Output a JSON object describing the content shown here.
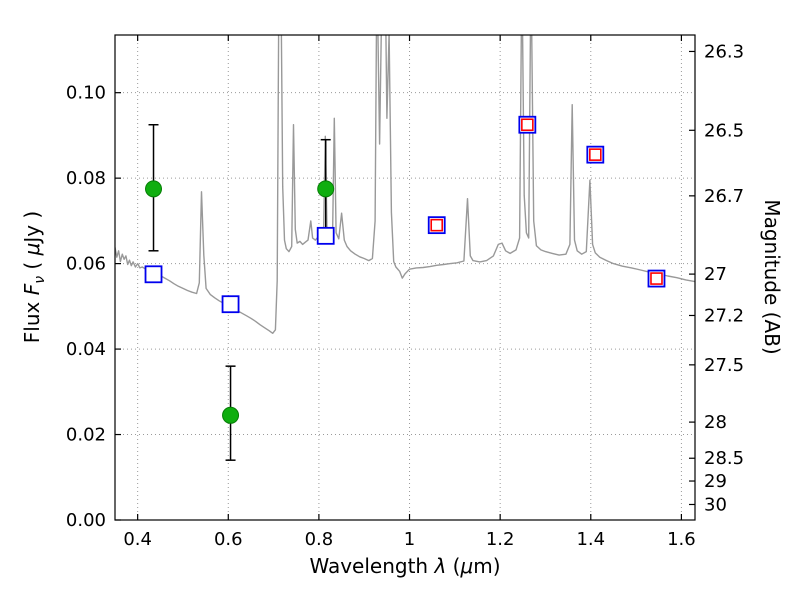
{
  "figure": {
    "xlabel": {
      "p1": "Wavelength  ",
      "lam": "λ",
      "p2": " (",
      "mu": "μ",
      "p3": "m)"
    },
    "ylabel": {
      "p1": "Flux  ",
      "f": "F",
      "sub": "ν",
      "p2": "  ( ",
      "mu": "μ",
      "p3": "Jy )"
    },
    "y2label": "Magnitude (AB)"
  },
  "chart_data": {
    "type": "line+scatter",
    "title": "",
    "xlabel": "Wavelength λ (μm)",
    "ylabel": "Flux Fν ( μJy )",
    "y2label": "Magnitude (AB)",
    "xlim": [
      0.35,
      1.63
    ],
    "ylim": [
      0.0,
      0.1135
    ],
    "x_ticks": [
      0.4,
      0.6,
      0.8,
      1.0,
      1.2,
      1.4,
      1.6
    ],
    "x_tick_labels": [
      "0.4",
      "0.6",
      "0.8",
      "1",
      "1.2",
      "1.4",
      "1.6"
    ],
    "y_ticks": [
      0.0,
      0.02,
      0.04,
      0.06,
      0.08,
      0.1
    ],
    "y_tick_labels": [
      "0.00",
      "0.02",
      "0.04",
      "0.06",
      "0.08",
      "0.10"
    ],
    "y2_tick_mags": [
      26.3,
      26.5,
      26.7,
      27,
      27.2,
      27.5,
      28,
      28.5,
      29,
      30
    ],
    "y2_tick_labels": [
      "26.3",
      "26.5",
      "26.7",
      "27",
      "27.2",
      "27.5",
      "28",
      "28.5",
      "29",
      "30"
    ],
    "ab_mag_zeropoint": 23.9,
    "grid": {
      "style": "dotted",
      "color": "#9a9a9a"
    },
    "colors": {
      "spectrum": "#999999",
      "observed_fill": "#0fae0f",
      "observed_edge": "#067d06",
      "errorbar": "#000000",
      "model_edge": "#0000ee",
      "model_inner": "#ff0000",
      "frame": "#000000",
      "background": "#ffffff"
    },
    "spectrum": {
      "name": "galaxy-spectrum",
      "color": "#999999",
      "linewidth": 1.4,
      "points": [
        [
          0.35,
          0.0638
        ],
        [
          0.354,
          0.0615
        ],
        [
          0.358,
          0.063
        ],
        [
          0.362,
          0.0605
        ],
        [
          0.366,
          0.0622
        ],
        [
          0.37,
          0.061
        ],
        [
          0.374,
          0.0618
        ],
        [
          0.378,
          0.0598
        ],
        [
          0.382,
          0.0608
        ],
        [
          0.386,
          0.0595
        ],
        [
          0.39,
          0.0604
        ],
        [
          0.395,
          0.0592
        ],
        [
          0.4,
          0.06
        ],
        [
          0.405,
          0.059
        ],
        [
          0.41,
          0.0592
        ],
        [
          0.42,
          0.0586
        ],
        [
          0.43,
          0.0583
        ],
        [
          0.44,
          0.0578
        ],
        [
          0.45,
          0.0572
        ],
        [
          0.46,
          0.0566
        ],
        [
          0.47,
          0.056
        ],
        [
          0.48,
          0.0553
        ],
        [
          0.49,
          0.0547
        ],
        [
          0.5,
          0.0542
        ],
        [
          0.51,
          0.0537
        ],
        [
          0.52,
          0.0533
        ],
        [
          0.53,
          0.053
        ],
        [
          0.536,
          0.0555
        ],
        [
          0.541,
          0.0768
        ],
        [
          0.546,
          0.062
        ],
        [
          0.551,
          0.0542
        ],
        [
          0.56,
          0.0528
        ],
        [
          0.57,
          0.052
        ],
        [
          0.58,
          0.0513
        ],
        [
          0.59,
          0.0507
        ],
        [
          0.6,
          0.0501
        ],
        [
          0.61,
          0.0495
        ],
        [
          0.62,
          0.049
        ],
        [
          0.63,
          0.0484
        ],
        [
          0.64,
          0.0478
        ],
        [
          0.65,
          0.0472
        ],
        [
          0.66,
          0.0465
        ],
        [
          0.67,
          0.0457
        ],
        [
          0.68,
          0.045
        ],
        [
          0.69,
          0.0443
        ],
        [
          0.698,
          0.0437
        ],
        [
          0.704,
          0.0445
        ],
        [
          0.708,
          0.056
        ],
        [
          0.712,
          0.13
        ],
        [
          0.716,
          0.13
        ],
        [
          0.72,
          0.078
        ],
        [
          0.724,
          0.0655
        ],
        [
          0.728,
          0.0635
        ],
        [
          0.734,
          0.0628
        ],
        [
          0.74,
          0.064
        ],
        [
          0.744,
          0.0925
        ],
        [
          0.748,
          0.068
        ],
        [
          0.752,
          0.0648
        ],
        [
          0.758,
          0.0652
        ],
        [
          0.764,
          0.0645
        ],
        [
          0.77,
          0.065
        ],
        [
          0.776,
          0.0655
        ],
        [
          0.782,
          0.07
        ],
        [
          0.786,
          0.066
        ],
        [
          0.792,
          0.0655
        ],
        [
          0.798,
          0.0662
        ],
        [
          0.804,
          0.0655
        ],
        [
          0.81,
          0.065
        ],
        [
          0.814,
          0.0898
        ],
        [
          0.818,
          0.0665
        ],
        [
          0.824,
          0.0652
        ],
        [
          0.83,
          0.0655
        ],
        [
          0.834,
          0.094
        ],
        [
          0.838,
          0.0672
        ],
        [
          0.844,
          0.0658
        ],
        [
          0.85,
          0.0718
        ],
        [
          0.856,
          0.0655
        ],
        [
          0.862,
          0.064
        ],
        [
          0.87,
          0.063
        ],
        [
          0.88,
          0.0622
        ],
        [
          0.89,
          0.0616
        ],
        [
          0.9,
          0.0612
        ],
        [
          0.91,
          0.0607
        ],
        [
          0.918,
          0.0612
        ],
        [
          0.924,
          0.07
        ],
        [
          0.928,
          0.13
        ],
        [
          0.934,
          0.088
        ],
        [
          0.94,
          0.13
        ],
        [
          0.946,
          0.13
        ],
        [
          0.95,
          0.094
        ],
        [
          0.955,
          0.114
        ],
        [
          0.96,
          0.072
        ],
        [
          0.965,
          0.0605
        ],
        [
          0.97,
          0.0592
        ],
        [
          0.978,
          0.0582
        ],
        [
          0.984,
          0.0566
        ],
        [
          0.99,
          0.0576
        ],
        [
          1.0,
          0.0587
        ],
        [
          1.015,
          0.059
        ],
        [
          1.03,
          0.0591
        ],
        [
          1.045,
          0.0593
        ],
        [
          1.06,
          0.0596
        ],
        [
          1.075,
          0.0598
        ],
        [
          1.09,
          0.06
        ],
        [
          1.105,
          0.0602
        ],
        [
          1.12,
          0.0606
        ],
        [
          1.128,
          0.0752
        ],
        [
          1.134,
          0.0618
        ],
        [
          1.14,
          0.0607
        ],
        [
          1.155,
          0.0604
        ],
        [
          1.17,
          0.0607
        ],
        [
          1.185,
          0.0618
        ],
        [
          1.196,
          0.0645
        ],
        [
          1.204,
          0.0648
        ],
        [
          1.212,
          0.063
        ],
        [
          1.222,
          0.0624
        ],
        [
          1.235,
          0.0632
        ],
        [
          1.243,
          0.066
        ],
        [
          1.248,
          0.13
        ],
        [
          1.253,
          0.076
        ],
        [
          1.258,
          0.0672
        ],
        [
          1.263,
          0.066
        ],
        [
          1.268,
          0.13
        ],
        [
          1.274,
          0.07
        ],
        [
          1.28,
          0.0642
        ],
        [
          1.29,
          0.0632
        ],
        [
          1.3,
          0.0628
        ],
        [
          1.315,
          0.0624
        ],
        [
          1.33,
          0.062
        ],
        [
          1.345,
          0.0622
        ],
        [
          1.354,
          0.0645
        ],
        [
          1.359,
          0.0972
        ],
        [
          1.364,
          0.0655
        ],
        [
          1.37,
          0.063
        ],
        [
          1.38,
          0.0622
        ],
        [
          1.39,
          0.0628
        ],
        [
          1.398,
          0.0795
        ],
        [
          1.404,
          0.0645
        ],
        [
          1.41,
          0.0625
        ],
        [
          1.42,
          0.0615
        ],
        [
          1.435,
          0.0607
        ],
        [
          1.45,
          0.06
        ],
        [
          1.47,
          0.0594
        ],
        [
          1.49,
          0.059
        ],
        [
          1.51,
          0.0585
        ],
        [
          1.53,
          0.058
        ],
        [
          1.55,
          0.0576
        ],
        [
          1.57,
          0.0571
        ],
        [
          1.59,
          0.0567
        ],
        [
          1.61,
          0.0562
        ],
        [
          1.63,
          0.0558
        ]
      ]
    },
    "observed_points": [
      {
        "x": 0.435,
        "y": 0.0775,
        "ylo": 0.063,
        "yhi": 0.0925
      },
      {
        "x": 0.605,
        "y": 0.0245,
        "ylo": 0.014,
        "yhi": 0.036
      },
      {
        "x": 0.815,
        "y": 0.0775,
        "ylo": 0.066,
        "yhi": 0.089
      }
    ],
    "model_points": [
      {
        "x": 0.435,
        "y": 0.0575,
        "red": false
      },
      {
        "x": 0.605,
        "y": 0.0505,
        "red": false
      },
      {
        "x": 0.815,
        "y": 0.0665,
        "red": false
      },
      {
        "x": 1.06,
        "y": 0.069,
        "red": true
      },
      {
        "x": 1.26,
        "y": 0.0925,
        "red": true
      },
      {
        "x": 1.41,
        "y": 0.0855,
        "red": true
      },
      {
        "x": 1.545,
        "y": 0.0565,
        "red": true
      }
    ]
  }
}
